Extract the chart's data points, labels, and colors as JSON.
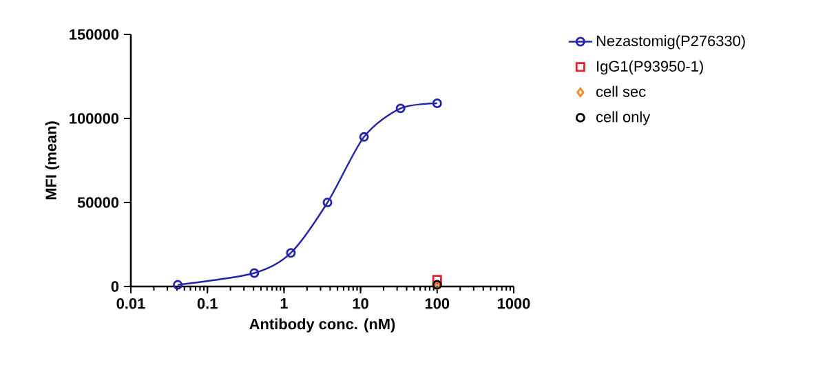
{
  "chart_data": {
    "type": "scatter",
    "xlabel": "Antibody conc. (nM)",
    "ylabel": "MFI (mean)",
    "log": "x",
    "xlim": [
      0.01,
      1000
    ],
    "xticks": [
      0.01,
      0.1,
      1,
      10,
      100,
      1000
    ],
    "ylim": [
      0,
      150000
    ],
    "yticks": [
      0,
      50000,
      100000,
      150000
    ],
    "grid": false,
    "legend": "right",
    "series": [
      {
        "name": "Nezastomig(P276330)",
        "type": "line",
        "color": "#2424a8",
        "marker": "circle",
        "line_style": "solid",
        "x": [
          0.041,
          0.41,
          1.23,
          3.7,
          11.1,
          33.3,
          100
        ],
        "values": [
          1000,
          8000,
          20000,
          50000,
          89000,
          106000,
          109000
        ]
      },
      {
        "name": "IgG1(P93950-1)",
        "color": "#e8202a",
        "marker": "square",
        "x": [
          100
        ],
        "values": [
          4000
        ]
      },
      {
        "name": "cell sec",
        "color": "#f08a24",
        "marker": "diamond",
        "x": [
          100
        ],
        "values": [
          1000
        ]
      },
      {
        "name": "cell only",
        "color": "#000000",
        "marker": "circle",
        "x": [
          100
        ],
        "values": [
          1000
        ]
      }
    ]
  }
}
